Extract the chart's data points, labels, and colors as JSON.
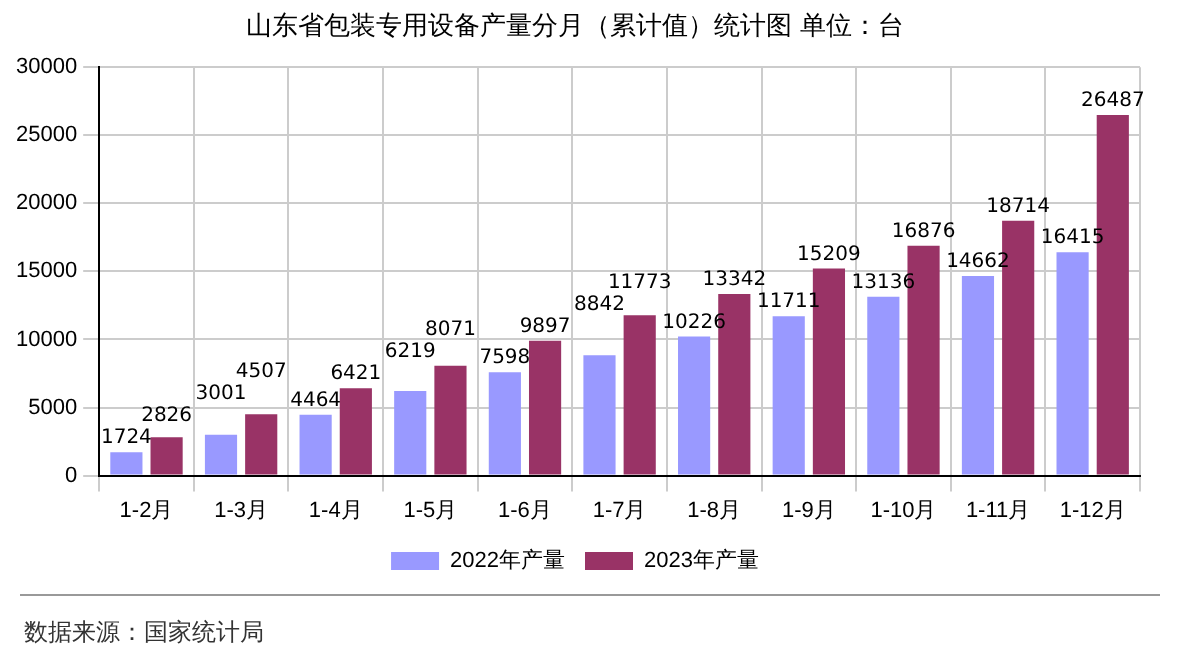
{
  "chart_data": {
    "type": "bar",
    "title": "山东省包装专用设备产量分月（累计值）统计图 单位：台",
    "categories": [
      "1-2月",
      "1-3月",
      "1-4月",
      "1-5月",
      "1-6月",
      "1-7月",
      "1-8月",
      "1-9月",
      "1-10月",
      "1-11月",
      "1-12月"
    ],
    "series": [
      {
        "name": "2022年产量",
        "color": "#9999ff",
        "values": [
          1724,
          3001,
          4464,
          6219,
          7598,
          8842,
          10226,
          11711,
          13136,
          14662,
          16415
        ]
      },
      {
        "name": "2023年产量",
        "color": "#993366",
        "values": [
          2826,
          4507,
          6421,
          8071,
          9897,
          11773,
          13342,
          15209,
          16876,
          18714,
          26487
        ]
      }
    ],
    "ylim": [
      0,
      30000
    ],
    "yticks": [
      0,
      5000,
      10000,
      15000,
      20000,
      25000,
      30000
    ],
    "grid": true,
    "legend": "bottom",
    "data_labels": true,
    "annotations": [
      "数据来源：国家统计局"
    ]
  }
}
